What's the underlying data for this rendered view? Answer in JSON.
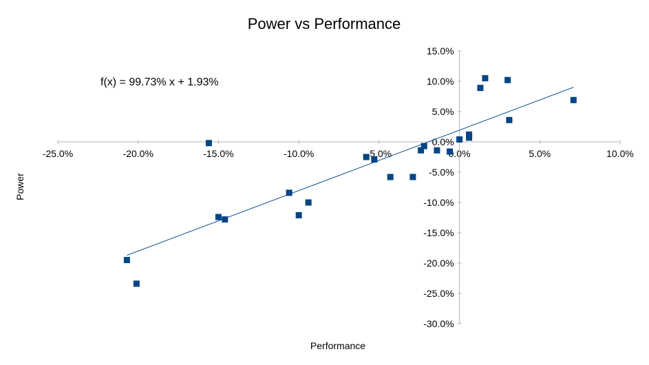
{
  "chart_data": {
    "type": "scatter",
    "title": "Power vs Performance",
    "xlabel": "Performance",
    "ylabel": "Power",
    "xlim": [
      -0.25,
      0.1
    ],
    "ylim": [
      -0.3,
      0.15
    ],
    "x_ticks": [
      {
        "value": -0.25,
        "label": "-25.0%"
      },
      {
        "value": -0.2,
        "label": "-20.0%"
      },
      {
        "value": -0.15,
        "label": "-15.0%"
      },
      {
        "value": -0.1,
        "label": "-10.0%"
      },
      {
        "value": -0.05,
        "label": "-5.0%"
      },
      {
        "value": 0.0,
        "label": "0.0%"
      },
      {
        "value": 0.05,
        "label": "5.0%"
      },
      {
        "value": 0.1,
        "label": "10.0%"
      }
    ],
    "y_ticks": [
      {
        "value": 0.15,
        "label": "15.0%"
      },
      {
        "value": 0.1,
        "label": "10.0%"
      },
      {
        "value": 0.05,
        "label": "5.0%"
      },
      {
        "value": 0.0,
        "label": "0.0%"
      },
      {
        "value": -0.05,
        "label": "-5.0%"
      },
      {
        "value": -0.1,
        "label": "-10.0%"
      },
      {
        "value": -0.15,
        "label": "-15.0%"
      },
      {
        "value": -0.2,
        "label": "-20.0%"
      },
      {
        "value": -0.25,
        "label": "-25.0%"
      },
      {
        "value": -0.3,
        "label": "-30.0%"
      }
    ],
    "grid": false,
    "legend": "none",
    "marker_color": "#004586",
    "trendline_color": "#004586",
    "trendline": {
      "equation": "f(x) = 99.73% x + 1.93%",
      "slope": 0.9973,
      "intercept": 0.0193,
      "x_range": [
        -0.207,
        0.071
      ]
    },
    "points": [
      {
        "x": -0.207,
        "y": -0.195
      },
      {
        "x": -0.201,
        "y": -0.234
      },
      {
        "x": -0.156,
        "y": -0.002
      },
      {
        "x": -0.15,
        "y": -0.124
      },
      {
        "x": -0.146,
        "y": -0.128
      },
      {
        "x": -0.106,
        "y": -0.084
      },
      {
        "x": -0.1,
        "y": -0.121
      },
      {
        "x": -0.094,
        "y": -0.1
      },
      {
        "x": -0.058,
        "y": -0.025
      },
      {
        "x": -0.053,
        "y": -0.029
      },
      {
        "x": -0.043,
        "y": -0.058
      },
      {
        "x": -0.029,
        "y": -0.058
      },
      {
        "x": -0.024,
        "y": -0.014
      },
      {
        "x": -0.022,
        "y": -0.007
      },
      {
        "x": -0.014,
        "y": -0.014
      },
      {
        "x": -0.006,
        "y": -0.016
      },
      {
        "x": 0.0,
        "y": 0.004
      },
      {
        "x": 0.006,
        "y": 0.007
      },
      {
        "x": 0.006,
        "y": 0.012
      },
      {
        "x": 0.013,
        "y": 0.089
      },
      {
        "x": 0.016,
        "y": 0.105
      },
      {
        "x": 0.03,
        "y": 0.102
      },
      {
        "x": 0.031,
        "y": 0.036
      },
      {
        "x": 0.071,
        "y": 0.069
      }
    ]
  }
}
